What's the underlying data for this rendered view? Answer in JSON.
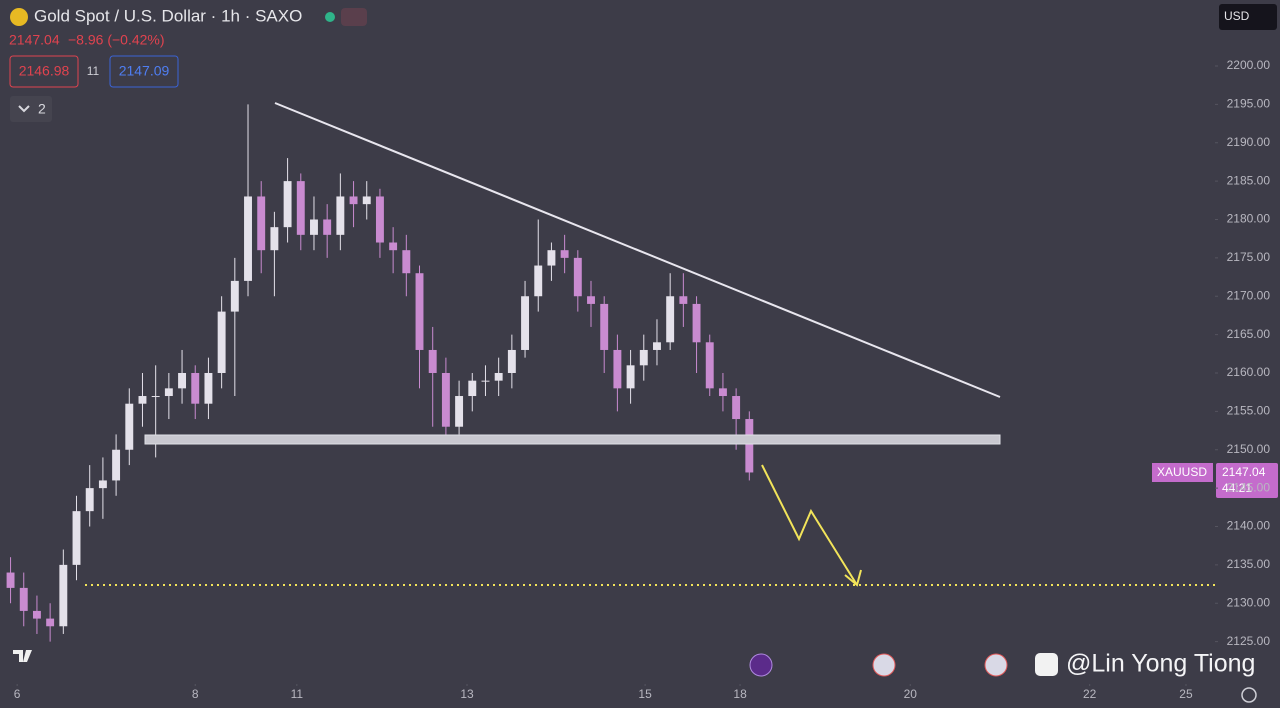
{
  "header": {
    "symbol_title": "Gold Spot / U.S. Dollar · 1h · SAXO",
    "last_price": "2147.04",
    "change": "−8.96 (−0.42%)",
    "bid": "2146.98",
    "spread": "11",
    "ask": "2147.09",
    "indicators_count": "2"
  },
  "currency": "USD",
  "price_tag": {
    "symbol": "XAUUSD",
    "price": "2147.04",
    "countdown": "44:21"
  },
  "watermark": "@Lin Yong Tiong",
  "chart_data": {
    "type": "candlestick",
    "up_color": "#e4e1ea",
    "down_color": "#c98bd0",
    "candles": [
      [
        2134,
        2136,
        2130,
        2132
      ],
      [
        2132,
        2134,
        2127,
        2129
      ],
      [
        2129,
        2131,
        2126,
        2128
      ],
      [
        2128,
        2130,
        2125,
        2127
      ],
      [
        2127,
        2137,
        2126,
        2135
      ],
      [
        2135,
        2144,
        2133,
        2142
      ],
      [
        2142,
        2148,
        2140,
        2145
      ],
      [
        2145,
        2149,
        2141,
        2146
      ],
      [
        2146,
        2152,
        2144,
        2150
      ],
      [
        2150,
        2158,
        2148,
        2156
      ],
      [
        2156,
        2160,
        2153,
        2157
      ],
      [
        2157,
        2161,
        2149,
        2157
      ],
      [
        2157,
        2160,
        2154,
        2158
      ],
      [
        2158,
        2163,
        2156,
        2160
      ],
      [
        2160,
        2161,
        2154,
        2156
      ],
      [
        2156,
        2162,
        2154,
        2160
      ],
      [
        2160,
        2170,
        2158,
        2168
      ],
      [
        2168,
        2175,
        2157,
        2172
      ],
      [
        2172,
        2195,
        2170,
        2183
      ],
      [
        2183,
        2185,
        2173,
        2176
      ],
      [
        2176,
        2181,
        2170,
        2179
      ],
      [
        2179,
        2188,
        2177,
        2185
      ],
      [
        2185,
        2186,
        2176,
        2178
      ],
      [
        2178,
        2183,
        2176,
        2180
      ],
      [
        2180,
        2182,
        2175,
        2178
      ],
      [
        2178,
        2186,
        2176,
        2183
      ],
      [
        2183,
        2185,
        2179,
        2182
      ],
      [
        2182,
        2185,
        2180,
        2183
      ],
      [
        2183,
        2184,
        2175,
        2177
      ],
      [
        2177,
        2179,
        2173,
        2176
      ],
      [
        2176,
        2178,
        2170,
        2173
      ],
      [
        2173,
        2174,
        2158,
        2163
      ],
      [
        2163,
        2166,
        2153,
        2160
      ],
      [
        2160,
        2162,
        2151,
        2153
      ],
      [
        2153,
        2159,
        2152,
        2157
      ],
      [
        2157,
        2160,
        2155,
        2159
      ],
      [
        2159,
        2161,
        2157,
        2159
      ],
      [
        2159,
        2162,
        2157,
        2160
      ],
      [
        2160,
        2165,
        2158,
        2163
      ],
      [
        2163,
        2172,
        2162,
        2170
      ],
      [
        2170,
        2180,
        2168,
        2174
      ],
      [
        2174,
        2177,
        2172,
        2176
      ],
      [
        2176,
        2178,
        2173,
        2175
      ],
      [
        2175,
        2176,
        2168,
        2170
      ],
      [
        2170,
        2172,
        2166,
        2169
      ],
      [
        2169,
        2170,
        2160,
        2163
      ],
      [
        2163,
        2165,
        2155,
        2158
      ],
      [
        2158,
        2163,
        2156,
        2161
      ],
      [
        2161,
        2165,
        2159,
        2163
      ],
      [
        2163,
        2167,
        2161,
        2164
      ],
      [
        2164,
        2173,
        2163,
        2170
      ],
      [
        2170,
        2173,
        2166,
        2169
      ],
      [
        2169,
        2170,
        2160,
        2164
      ],
      [
        2164,
        2165,
        2157,
        2158
      ],
      [
        2158,
        2160,
        2155,
        2157
      ],
      [
        2157,
        2158,
        2150,
        2154
      ],
      [
        2154,
        2155,
        2146,
        2147.04
      ]
    ],
    "xlim": [
      -0.8,
      91.3
    ],
    "xticks": [
      {
        "value": 0.5,
        "label": "6"
      },
      {
        "value": 14.0,
        "label": "8"
      },
      {
        "value": 21.7,
        "label": "11"
      },
      {
        "value": 34.6,
        "label": "13"
      },
      {
        "value": 48.1,
        "label": "15"
      },
      {
        "value": 55.3,
        "label": "18"
      },
      {
        "value": 68.2,
        "label": "20"
      },
      {
        "value": 81.8,
        "label": "22"
      },
      {
        "value": 89.1,
        "label": "25"
      }
    ],
    "ylim": [
      2124.56,
      2200.52
    ],
    "yticks": [
      {
        "value": 2125,
        "label": "2125.00"
      },
      {
        "value": 2130,
        "label": "2130.00"
      },
      {
        "value": 2135,
        "label": "2135.00"
      },
      {
        "value": 2140,
        "label": "2140.00"
      },
      {
        "value": 2145,
        "label": "2145.00"
      },
      {
        "value": 2150,
        "label": "2150.00"
      },
      {
        "value": 2155,
        "label": "2155.00"
      },
      {
        "value": 2160,
        "label": "2160.00"
      },
      {
        "value": 2165,
        "label": "2165.00"
      },
      {
        "value": 2170,
        "label": "2170.00"
      },
      {
        "value": 2175,
        "label": "2175.00"
      },
      {
        "value": 2180,
        "label": "2180.00"
      },
      {
        "value": 2185,
        "label": "2185.00"
      },
      {
        "value": 2190,
        "label": "2190.00"
      },
      {
        "value": 2195,
        "label": "2195.00"
      },
      {
        "value": 2200,
        "label": "2200.00"
      }
    ]
  }
}
